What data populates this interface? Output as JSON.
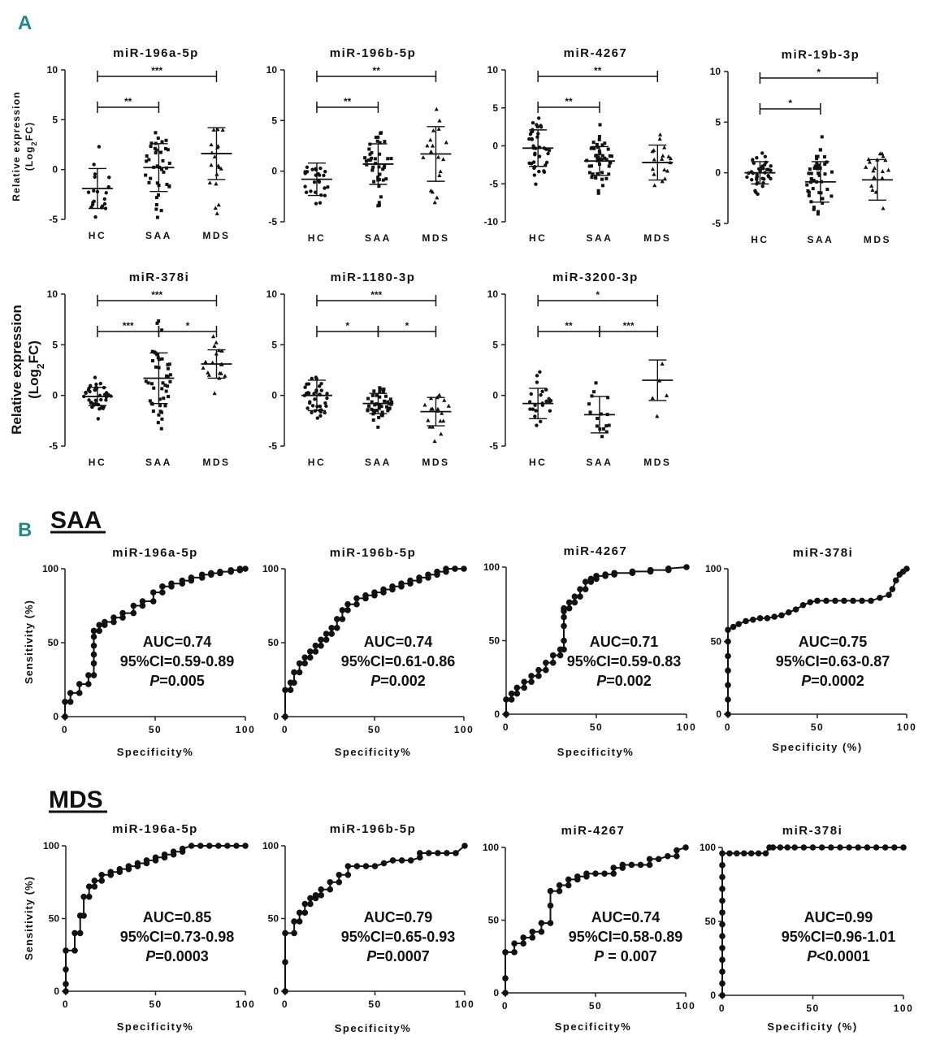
{
  "figure": {
    "panel_a": "A",
    "panel_b": "B",
    "section_saa": "SAA",
    "section_mds": "MDS",
    "ylabel_small_1": "Relative expression",
    "ylabel_small_2": "(Log",
    "ylabel_small_sub": "2",
    "ylabel_small_3": "FC)",
    "roc_ylabel": "Sensitivity (%)"
  },
  "chart_data": [
    {
      "type": "scatter",
      "title": "miR-196a-5p",
      "categories": [
        "HC",
        "SAA",
        "MDS"
      ],
      "ylim": [
        -5,
        10
      ],
      "yticks": [
        -5,
        0,
        5,
        10
      ],
      "groups": [
        {
          "mean": -1.9,
          "sd": 2.0,
          "n": 20
        },
        {
          "mean": 0.2,
          "sd": 2.4,
          "n": 38
        },
        {
          "mean": 1.6,
          "sd": 2.6,
          "n": 18
        }
      ],
      "brackets": [
        {
          "from": 0,
          "to": 1,
          "label": "**"
        },
        {
          "from": 0,
          "to": 2,
          "label": "***"
        }
      ]
    },
    {
      "type": "scatter",
      "title": "miR-196b-5p",
      "categories": [
        "HC",
        "SAA",
        "MDS"
      ],
      "ylim": [
        -5,
        10
      ],
      "yticks": [
        -5,
        0,
        5,
        10
      ],
      "groups": [
        {
          "mean": -0.8,
          "sd": 1.6,
          "n": 26
        },
        {
          "mean": 0.7,
          "sd": 2.0,
          "n": 40
        },
        {
          "mean": 1.7,
          "sd": 2.7,
          "n": 18
        }
      ],
      "brackets": [
        {
          "from": 0,
          "to": 1,
          "label": "**"
        },
        {
          "from": 0,
          "to": 2,
          "label": "**"
        }
      ]
    },
    {
      "type": "scatter",
      "title": "miR-4267",
      "categories": [
        "HC",
        "SAA",
        "MDS"
      ],
      "ylim": [
        -10,
        10
      ],
      "yticks": [
        -10,
        -5,
        0,
        5,
        10
      ],
      "groups": [
        {
          "mean": -0.3,
          "sd": 2.4,
          "n": 38
        },
        {
          "mean": -2.0,
          "sd": 1.9,
          "n": 44
        },
        {
          "mean": -2.2,
          "sd": 2.3,
          "n": 18
        }
      ],
      "brackets": [
        {
          "from": 0,
          "to": 1,
          "label": "**"
        },
        {
          "from": 0,
          "to": 2,
          "label": "**"
        }
      ]
    },
    {
      "type": "scatter",
      "title": "miR-19b-3p",
      "categories": [
        "HC",
        "SAA",
        "MDS"
      ],
      "ylim": [
        -5,
        10
      ],
      "yticks": [
        -5,
        0,
        5,
        10
      ],
      "groups": [
        {
          "mean": 0.0,
          "sd": 1.1,
          "n": 38
        },
        {
          "mean": -0.9,
          "sd": 2.0,
          "n": 44
        },
        {
          "mean": -0.7,
          "sd": 2.0,
          "n": 18
        }
      ],
      "brackets": [
        {
          "from": 0,
          "to": 1,
          "label": "*"
        },
        {
          "from": 0,
          "to": 2,
          "label": "*"
        }
      ]
    },
    {
      "type": "scatter",
      "title": "miR-378i",
      "categories": [
        "HC",
        "SAA",
        "MDS"
      ],
      "ylim": [
        -5,
        10
      ],
      "yticks": [
        -5,
        0,
        5,
        10
      ],
      "groups": [
        {
          "mean": -0.1,
          "sd": 0.9,
          "n": 38
        },
        {
          "mean": 1.7,
          "sd": 2.5,
          "n": 44
        },
        {
          "mean": 3.1,
          "sd": 1.4,
          "n": 18
        }
      ],
      "brackets": [
        {
          "from": 0,
          "to": 1,
          "label": "***"
        },
        {
          "from": 1,
          "to": 2,
          "label": "*"
        },
        {
          "from": 0,
          "to": 2,
          "label": "***"
        }
      ]
    },
    {
      "type": "scatter",
      "title": "miR-1180-3p",
      "categories": [
        "HC",
        "SAA",
        "MDS"
      ],
      "ylim": [
        -5,
        10
      ],
      "yticks": [
        -5,
        0,
        5,
        10
      ],
      "groups": [
        {
          "mean": 0.0,
          "sd": 1.5,
          "n": 38
        },
        {
          "mean": -0.8,
          "sd": 1.0,
          "n": 44
        },
        {
          "mean": -1.6,
          "sd": 1.4,
          "n": 18
        }
      ],
      "brackets": [
        {
          "from": 0,
          "to": 1,
          "label": "*"
        },
        {
          "from": 1,
          "to": 2,
          "label": "*"
        },
        {
          "from": 0,
          "to": 2,
          "label": "***"
        }
      ]
    },
    {
      "type": "scatter",
      "title": "miR-3200-3p",
      "categories": [
        "HC",
        "SAA",
        "MDS"
      ],
      "ylim": [
        -5,
        10
      ],
      "yticks": [
        -5,
        0,
        5,
        10
      ],
      "groups": [
        {
          "mean": -0.8,
          "sd": 1.5,
          "n": 22
        },
        {
          "mean": -1.9,
          "sd": 1.8,
          "n": 16
        },
        {
          "mean": 1.5,
          "sd": 2.0,
          "n": 5
        }
      ],
      "brackets": [
        {
          "from": 0,
          "to": 1,
          "label": "**"
        },
        {
          "from": 1,
          "to": 2,
          "label": "***"
        },
        {
          "from": 0,
          "to": 2,
          "label": "*"
        }
      ]
    },
    {
      "type": "line",
      "group": "SAA",
      "title": "miR-196a-5p",
      "xlabel": "Specificity%",
      "auc": "AUC=0.74",
      "ci": "95%CI=0.59-0.89",
      "p_prefix": "P",
      "p_value": "=0.005",
      "x": [
        0,
        0,
        3,
        3,
        8,
        8,
        13,
        13,
        16,
        16,
        16,
        16,
        16,
        16,
        19,
        19,
        22,
        22,
        27,
        27,
        32,
        32,
        38,
        38,
        43,
        43,
        49,
        49,
        54,
        54,
        59,
        59,
        65,
        65,
        70,
        70,
        76,
        76,
        81,
        81,
        86,
        86,
        92,
        92,
        97,
        97,
        100
      ],
      "y": [
        0,
        10,
        10,
        16,
        16,
        22,
        22,
        28,
        28,
        36,
        42,
        48,
        54,
        58,
        58,
        62,
        62,
        64,
        64,
        67,
        67,
        70,
        70,
        75,
        75,
        78,
        78,
        84,
        84,
        88,
        88,
        90,
        90,
        92,
        92,
        94,
        94,
        96,
        96,
        97,
        97,
        98,
        98,
        99,
        99,
        100,
        100
      ]
    },
    {
      "type": "line",
      "group": "SAA",
      "title": "miR-196b-5p",
      "xlabel": "Specificity%",
      "auc": "AUC=0.74",
      "ci": "95%CI=0.61-0.86",
      "p_prefix": "P",
      "p_value": "=0.002",
      "x": [
        0,
        0,
        3,
        3,
        5,
        5,
        8,
        8,
        11,
        11,
        14,
        14,
        17,
        17,
        20,
        20,
        23,
        23,
        26,
        26,
        29,
        29,
        32,
        32,
        35,
        35,
        40,
        40,
        45,
        45,
        50,
        50,
        55,
        55,
        60,
        60,
        65,
        65,
        70,
        70,
        75,
        75,
        80,
        80,
        85,
        85,
        90,
        90,
        95,
        95,
        100
      ],
      "y": [
        0,
        18,
        18,
        23,
        23,
        30,
        30,
        36,
        36,
        40,
        40,
        44,
        44,
        48,
        48,
        52,
        52,
        56,
        56,
        60,
        60,
        66,
        66,
        72,
        72,
        76,
        76,
        80,
        80,
        82,
        82,
        84,
        84,
        86,
        86,
        88,
        88,
        90,
        90,
        92,
        92,
        94,
        94,
        96,
        96,
        98,
        98,
        100,
        100,
        100,
        100
      ]
    },
    {
      "type": "line",
      "group": "SAA",
      "title": "miR-4267",
      "xlabel": "Specificity%",
      "auc": "AUC=0.71",
      "ci": "95%CI=0.59-0.83",
      "p_prefix": "P",
      "p_value": "=0.002",
      "x": [
        0,
        0,
        3,
        3,
        6,
        6,
        10,
        10,
        14,
        14,
        18,
        18,
        22,
        22,
        26,
        26,
        30,
        30,
        32,
        32,
        32,
        32,
        32,
        32,
        35,
        35,
        38,
        38,
        41,
        41,
        44,
        44,
        47,
        47,
        50,
        50,
        55,
        55,
        60,
        60,
        70,
        70,
        80,
        80,
        90,
        90,
        100
      ],
      "y": [
        0,
        10,
        10,
        14,
        14,
        18,
        18,
        22,
        22,
        26,
        26,
        30,
        30,
        35,
        35,
        40,
        40,
        44,
        44,
        50,
        60,
        66,
        70,
        72,
        72,
        76,
        76,
        80,
        80,
        85,
        85,
        90,
        90,
        92,
        92,
        94,
        94,
        95,
        95,
        96,
        96,
        97,
        97,
        98,
        98,
        99,
        100
      ]
    },
    {
      "type": "line",
      "group": "SAA",
      "title": "miR-378i",
      "xlabel": "Specificity (%)",
      "auc": "AUC=0.75",
      "ci": "95%CI=0.63-0.87",
      "p_prefix": "P",
      "p_value": "=0.0002",
      "x": [
        0,
        0,
        0,
        0,
        0,
        0,
        0,
        3,
        6,
        10,
        14,
        18,
        22,
        26,
        30,
        34,
        38,
        42,
        46,
        50,
        55,
        60,
        65,
        70,
        75,
        80,
        85,
        90,
        92,
        94,
        96,
        98,
        100
      ],
      "y": [
        0,
        10,
        20,
        30,
        40,
        50,
        58,
        60,
        62,
        64,
        65,
        66,
        66,
        67,
        68,
        70,
        72,
        75,
        77,
        78,
        78,
        78,
        78,
        78,
        78,
        78,
        80,
        82,
        86,
        92,
        96,
        98,
        100
      ]
    },
    {
      "type": "line",
      "group": "MDS",
      "title": "miR-196a-5p",
      "xlabel": "Specificity%",
      "auc": "AUC=0.85",
      "ci": "95%CI=0.73-0.98",
      "p_prefix": "P",
      "p_value": "=0.0003",
      "x": [
        0,
        0,
        0,
        0,
        5,
        5,
        8,
        8,
        10,
        10,
        13,
        13,
        16,
        16,
        20,
        20,
        25,
        25,
        30,
        30,
        35,
        35,
        40,
        40,
        45,
        45,
        50,
        50,
        55,
        55,
        60,
        60,
        65,
        65,
        70,
        75,
        80,
        85,
        90,
        95,
        100
      ],
      "y": [
        0,
        5,
        15,
        28,
        28,
        40,
        40,
        52,
        52,
        65,
        65,
        72,
        72,
        76,
        76,
        80,
        80,
        82,
        82,
        84,
        84,
        86,
        86,
        88,
        88,
        90,
        90,
        92,
        92,
        94,
        94,
        96,
        96,
        98,
        100,
        100,
        100,
        100,
        100,
        100,
        100
      ]
    },
    {
      "type": "line",
      "group": "MDS",
      "title": "miR-196b-5p",
      "xlabel": "Specificity%",
      "auc": "AUC=0.79",
      "ci": "95%CI=0.65-0.93",
      "p_prefix": "P",
      "p_value": "=0.0007",
      "x": [
        0,
        0,
        0,
        5,
        5,
        8,
        8,
        11,
        11,
        14,
        14,
        17,
        17,
        20,
        20,
        25,
        25,
        30,
        30,
        35,
        35,
        40,
        45,
        50,
        55,
        60,
        65,
        70,
        75,
        75,
        80,
        85,
        90,
        95,
        100
      ],
      "y": [
        0,
        20,
        40,
        40,
        48,
        48,
        54,
        54,
        60,
        60,
        64,
        64,
        66,
        66,
        70,
        70,
        75,
        75,
        80,
        80,
        86,
        86,
        86,
        86,
        88,
        90,
        90,
        90,
        92,
        95,
        95,
        95,
        95,
        95,
        100
      ]
    },
    {
      "type": "line",
      "group": "MDS",
      "title": "miR-4267",
      "xlabel": "Specificity%",
      "auc": "AUC=0.74",
      "ci": "95%CI=0.58-0.89",
      "p_prefix": "P",
      "p_value": " = 0.007",
      "x": [
        0,
        0,
        0,
        5,
        5,
        10,
        10,
        15,
        15,
        20,
        20,
        25,
        25,
        25,
        30,
        30,
        35,
        35,
        40,
        40,
        45,
        45,
        50,
        55,
        60,
        60,
        65,
        65,
        70,
        75,
        80,
        80,
        85,
        90,
        95,
        95,
        100
      ],
      "y": [
        0,
        10,
        28,
        28,
        34,
        34,
        38,
        38,
        42,
        42,
        48,
        48,
        60,
        70,
        70,
        74,
        74,
        78,
        78,
        80,
        80,
        82,
        82,
        82,
        82,
        86,
        86,
        88,
        88,
        88,
        88,
        92,
        92,
        94,
        94,
        98,
        100
      ]
    },
    {
      "type": "line",
      "group": "MDS",
      "title": "miR-378i",
      "xlabel": "Specificity (%)",
      "auc": "AUC=0.99",
      "ci": "95%CI=0.96-1.01",
      "p_prefix": "P",
      "p_value": "<0.0001",
      "x": [
        0,
        0,
        0,
        0,
        0,
        0,
        0,
        0,
        0,
        0,
        0,
        0,
        0,
        4,
        8,
        12,
        16,
        20,
        24,
        26,
        28,
        32,
        36,
        40,
        45,
        50,
        55,
        60,
        65,
        70,
        75,
        80,
        85,
        90,
        95,
        100
      ],
      "y": [
        0,
        8,
        16,
        24,
        32,
        40,
        48,
        56,
        64,
        72,
        80,
        88,
        96,
        96,
        96,
        96,
        96,
        96,
        96,
        100,
        100,
        100,
        100,
        100,
        100,
        100,
        100,
        100,
        100,
        100,
        100,
        100,
        100,
        100,
        100,
        100
      ]
    }
  ]
}
